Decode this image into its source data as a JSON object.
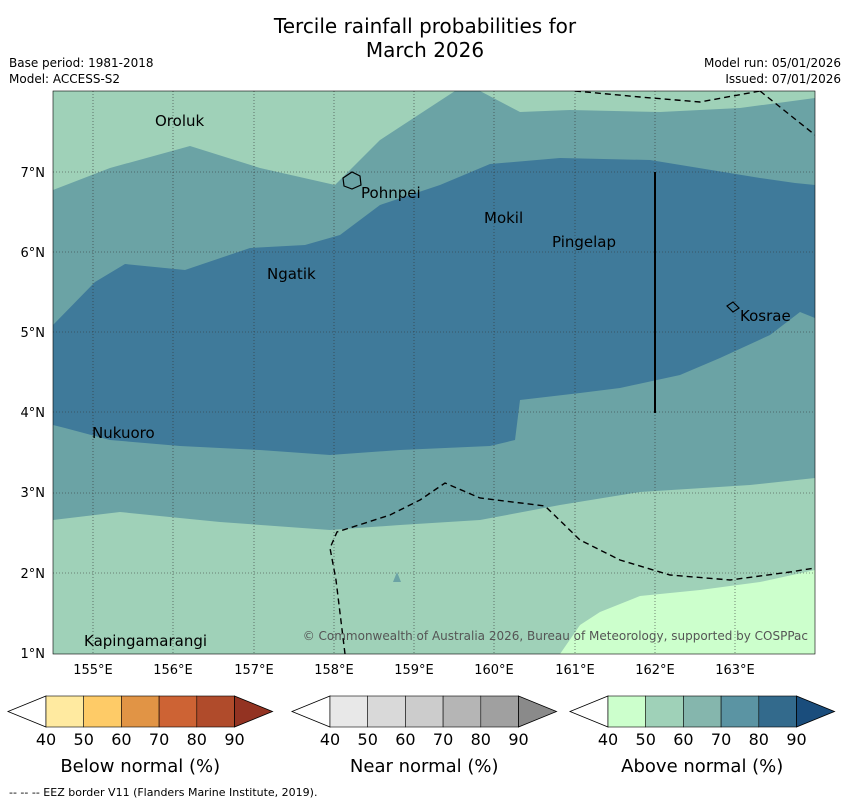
{
  "title_line1": "Tercile rainfall probabilities for",
  "title_line2": "March 2026",
  "base_period": "Base period: 1981-2018",
  "model": "Model: ACCESS-S2",
  "model_run": "Model run: 05/01/2026",
  "issued": "Issued: 07/01/2026",
  "map": {
    "lon_range": [
      154.5,
      164
    ],
    "lat_range": [
      1,
      8
    ],
    "lon_ticks": [
      "155°E",
      "156°E",
      "157°E",
      "158°E",
      "159°E",
      "160°E",
      "161°E",
      "162°E",
      "163°E"
    ],
    "lat_ticks": [
      "1°N",
      "2°N",
      "3°N",
      "4°N",
      "5°N",
      "6°N",
      "7°N"
    ],
    "places": [
      {
        "name": "Oroluk"
      },
      {
        "name": "Pohnpei"
      },
      {
        "name": "Mokil"
      },
      {
        "name": "Pingelap"
      },
      {
        "name": "Ngatik"
      },
      {
        "name": "Kosrae"
      },
      {
        "name": "Nukuoro"
      },
      {
        "name": "Kapingamarangi"
      }
    ],
    "copyright": "© Commonwealth of Australia 2026, Bureau of Meteorology, supported by COSPPac"
  },
  "colorbars": [
    {
      "title": "Below normal (%)",
      "labels": [
        "40",
        "50",
        "60",
        "70",
        "80",
        "90"
      ],
      "colors": [
        "#ffffff",
        "#ffeaa0",
        "#fecb67",
        "#e19445",
        "#cd6334",
        "#b04b2b",
        "#933322"
      ]
    },
    {
      "title": "Near normal (%)",
      "labels": [
        "40",
        "50",
        "60",
        "70",
        "80",
        "90"
      ],
      "colors": [
        "#ffffff",
        "#e8e8e8",
        "#d9d9d9",
        "#cccccc",
        "#b5b5b5",
        "#a0a0a0",
        "#8a8a8a"
      ]
    },
    {
      "title": "Above normal (%)",
      "labels": [
        "40",
        "50",
        "60",
        "70",
        "80",
        "90"
      ],
      "colors": [
        "#ffffff",
        "#ccffcc",
        "#9fd1b8",
        "#85b6ad",
        "#5b94a3",
        "#336a8c",
        "#1a4d7c"
      ]
    }
  ],
  "footnote": "--  --  -- EEZ border V11 (Flanders Marine Institute, 2019)."
}
